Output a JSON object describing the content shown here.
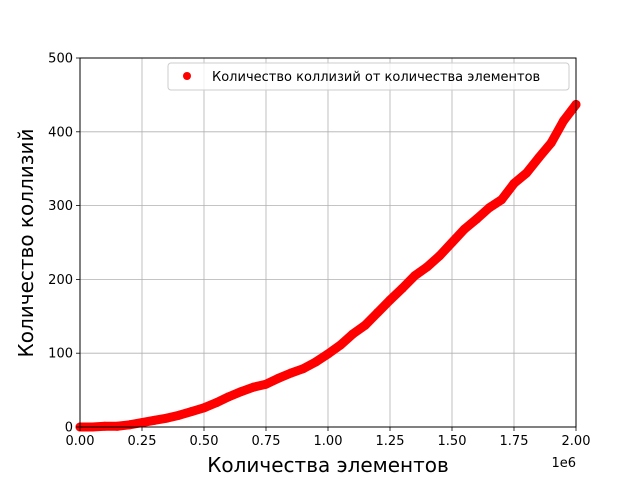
{
  "chart_data": {
    "type": "scatter",
    "xlabel": "Количества элементов",
    "ylabel": "Количество коллизий",
    "x_offset_label": "1e6",
    "xlim": [
      0,
      2000000
    ],
    "ylim": [
      0,
      500
    ],
    "xticks": [
      0,
      250000,
      500000,
      750000,
      1000000,
      1250000,
      1500000,
      1750000,
      2000000
    ],
    "xtick_labels": [
      "0.00",
      "0.25",
      "0.50",
      "0.75",
      "1.00",
      "1.25",
      "1.50",
      "1.75",
      "2.00"
    ],
    "yticks": [
      0,
      100,
      200,
      300,
      400,
      500
    ],
    "ytick_labels": [
      "0",
      "100",
      "200",
      "300",
      "400",
      "500"
    ],
    "grid": true,
    "legend_position": "top-right",
    "series": [
      {
        "name": "Количество коллизий от количества элементов",
        "color": "#ff0000",
        "x": [
          0,
          50000,
          100000,
          150000,
          200000,
          250000,
          300000,
          350000,
          400000,
          450000,
          500000,
          550000,
          600000,
          650000,
          700000,
          750000,
          800000,
          850000,
          900000,
          950000,
          1000000,
          1050000,
          1100000,
          1150000,
          1200000,
          1250000,
          1300000,
          1350000,
          1400000,
          1450000,
          1500000,
          1550000,
          1600000,
          1650000,
          1700000,
          1750000,
          1800000,
          1850000,
          1900000,
          1950000,
          2000000
        ],
        "y": [
          0,
          0,
          1,
          1,
          3,
          6,
          9,
          12,
          16,
          21,
          26,
          33,
          41,
          48,
          54,
          58,
          66,
          73,
          79,
          88,
          99,
          111,
          126,
          138,
          155,
          172,
          188,
          205,
          217,
          232,
          250,
          268,
          282,
          297,
          308,
          330,
          344,
          365,
          385,
          415,
          437
        ]
      }
    ]
  }
}
